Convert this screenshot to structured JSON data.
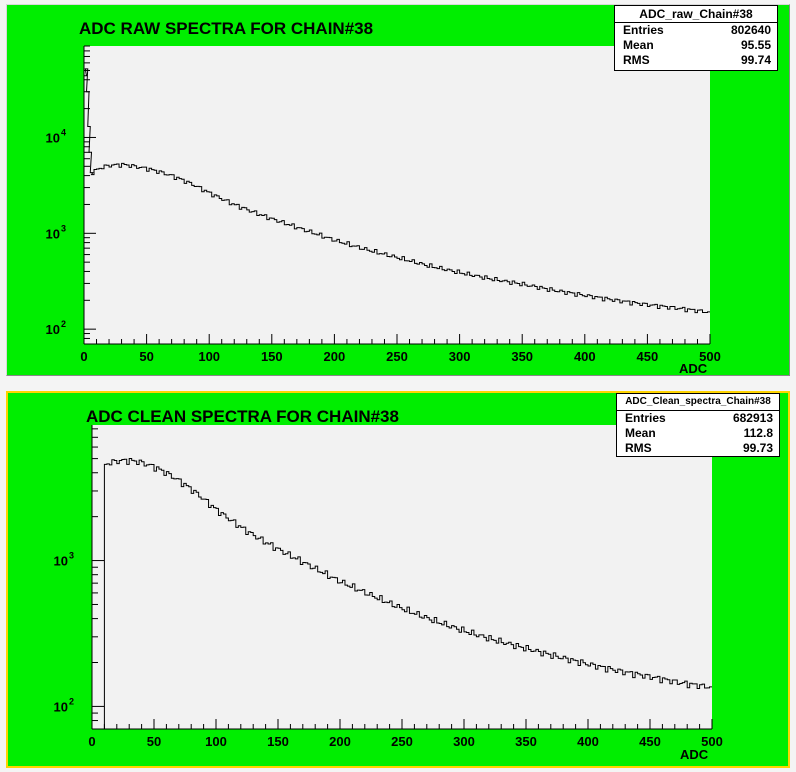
{
  "chart_data": [
    {
      "type": "bar",
      "histogram": true,
      "title": "ADC RAW SPECTRA FOR CHAIN#38",
      "xlabel": "ADC",
      "ylabel": "",
      "xlim": [
        0,
        500
      ],
      "ylim": [
        70,
        90000
      ],
      "yscale": "log",
      "xticks": [
        "0",
        "50",
        "100",
        "150",
        "200",
        "250",
        "300",
        "350",
        "400",
        "450",
        "500"
      ],
      "yticks": [
        {
          "base": "10",
          "exp": "2",
          "value": 100
        },
        {
          "base": "10",
          "exp": "3",
          "value": 1000
        },
        {
          "base": "10",
          "exp": "4",
          "value": 10000
        }
      ],
      "stats": {
        "name": "ADC_raw_Chain#38",
        "rows": [
          {
            "label": "Entries",
            "value": "802640"
          },
          {
            "label": "Mean",
            "value": "95.55"
          },
          {
            "label": "RMS",
            "value": "99.74"
          }
        ]
      },
      "pedestal": {
        "x": [
          1,
          2,
          3,
          4,
          5,
          6,
          7
        ],
        "y": [
          44000,
          52000,
          30000,
          13000,
          7000,
          4300,
          4100
        ]
      },
      "x": [
        8,
        10,
        15,
        20,
        25,
        30,
        35,
        40,
        50,
        60,
        70,
        80,
        90,
        100,
        110,
        120,
        130,
        140,
        150,
        175,
        200,
        225,
        250,
        275,
        300,
        325,
        350,
        375,
        400,
        425,
        450,
        475,
        500
      ],
      "values": [
        4300,
        4600,
        4900,
        5100,
        5150,
        5200,
        5150,
        5000,
        4750,
        4400,
        4000,
        3550,
        3100,
        2650,
        2300,
        2000,
        1780,
        1580,
        1420,
        1100,
        850,
        680,
        560,
        460,
        390,
        335,
        295,
        255,
        225,
        200,
        180,
        165,
        150
      ]
    },
    {
      "type": "bar",
      "histogram": true,
      "title": "ADC CLEAN SPECTRA FOR CHAIN#38",
      "xlabel": "ADC",
      "ylabel": "",
      "xlim": [
        0,
        500
      ],
      "ylim": [
        70,
        8500
      ],
      "yscale": "log",
      "xticks": [
        "0",
        "50",
        "100",
        "150",
        "200",
        "250",
        "300",
        "350",
        "400",
        "450",
        "500"
      ],
      "yticks": [
        {
          "base": "10",
          "exp": "2",
          "value": 100
        },
        {
          "base": "10",
          "exp": "3",
          "value": 1000
        }
      ],
      "stats": {
        "name": "ADC_Clean_spectra_Chain#38",
        "rows": [
          {
            "label": "Entries",
            "value": "682913"
          },
          {
            "label": "Mean",
            "value": "112.8"
          },
          {
            "label": "RMS",
            "value": "99.73"
          }
        ]
      },
      "x": [
        10,
        15,
        20,
        25,
        30,
        35,
        40,
        50,
        60,
        70,
        80,
        90,
        100,
        110,
        120,
        130,
        140,
        150,
        175,
        200,
        225,
        250,
        275,
        300,
        325,
        350,
        375,
        400,
        425,
        450,
        475,
        500
      ],
      "values": [
        4500,
        4700,
        4800,
        4850,
        4850,
        4800,
        4700,
        4400,
        4000,
        3550,
        3100,
        2650,
        2250,
        1950,
        1700,
        1500,
        1340,
        1200,
        930,
        720,
        580,
        470,
        390,
        330,
        285,
        250,
        220,
        195,
        175,
        160,
        145,
        135
      ]
    }
  ]
}
